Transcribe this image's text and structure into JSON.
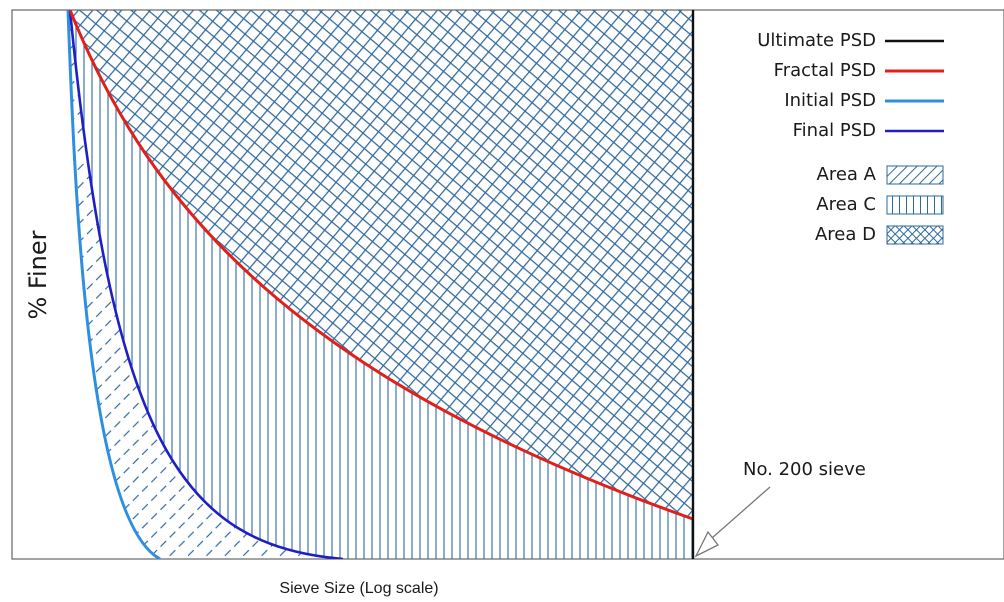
{
  "y_axis_label": "% Finer",
  "x_axis_label": "Sieve Size (Log scale)",
  "annotation": "No. 200 sieve",
  "legend": {
    "lines": [
      {
        "label": "Ultimate PSD",
        "color": "#111111"
      },
      {
        "label": "Fractal PSD",
        "color": "#e0201b"
      },
      {
        "label": "Initial PSD",
        "color": "#2e8fe0"
      },
      {
        "label": "Final PSD",
        "color": "#1f1fc4"
      }
    ],
    "areas": [
      {
        "label": "Area A",
        "pattern": "diagonal-dash-hatch"
      },
      {
        "label": "Area C",
        "pattern": "vertical-line-hatch"
      },
      {
        "label": "Area D",
        "pattern": "crosshatch"
      }
    ]
  },
  "pattern_color": "#2f6a9e"
}
